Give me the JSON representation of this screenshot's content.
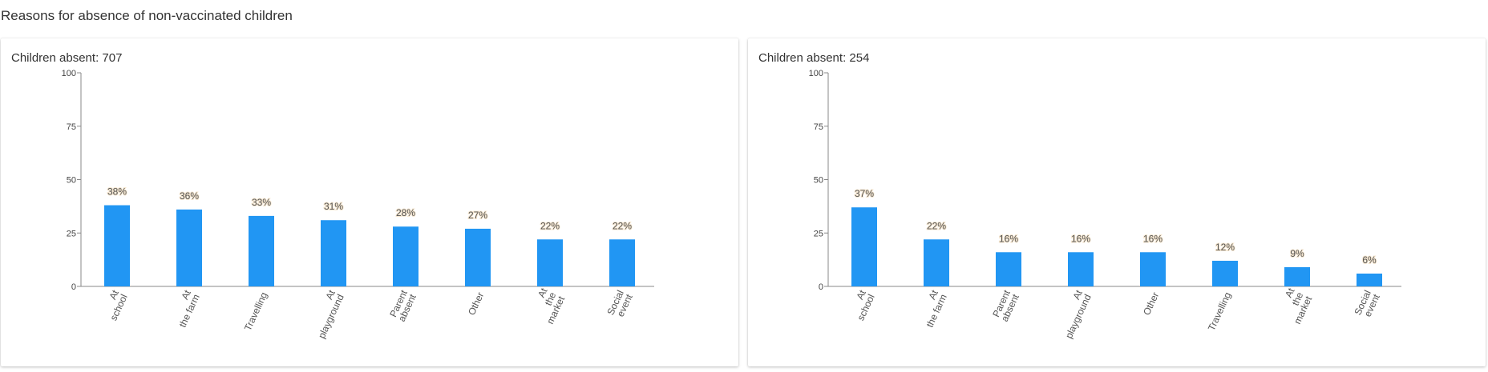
{
  "page": {
    "title": "Reasons for absence of non-vaccinated children"
  },
  "colors": {
    "bar": "#2196f3",
    "axis": "#888888"
  },
  "chart_data": [
    {
      "type": "bar",
      "title_prefix": "Children absent: ",
      "title_value": "707",
      "ylim": [
        0,
        100
      ],
      "yticks": [
        0,
        25,
        50,
        75,
        100
      ],
      "categories": [
        [
          "At",
          "school"
        ],
        [
          "At",
          "the farm"
        ],
        [
          "Travelling"
        ],
        [
          "At",
          "playground"
        ],
        [
          "Parent",
          "absent"
        ],
        [
          "Other"
        ],
        [
          "At",
          "the",
          "market"
        ],
        [
          "Social",
          "event"
        ]
      ],
      "values": [
        38,
        36,
        33,
        31,
        28,
        27,
        22,
        22
      ],
      "data_labels": [
        "38%",
        "36%",
        "33%",
        "31%",
        "28%",
        "27%",
        "22%",
        "22%"
      ]
    },
    {
      "type": "bar",
      "title_prefix": "Children absent: ",
      "title_value": "254",
      "ylim": [
        0,
        100
      ],
      "yticks": [
        0,
        25,
        50,
        75,
        100
      ],
      "categories": [
        [
          "At",
          "school"
        ],
        [
          "At",
          "the farm"
        ],
        [
          "Parent",
          "absent"
        ],
        [
          "At",
          "playground"
        ],
        [
          "Other"
        ],
        [
          "Travelling"
        ],
        [
          "At",
          "the",
          "market"
        ],
        [
          "Social",
          "event"
        ]
      ],
      "values": [
        37,
        22,
        16,
        16,
        16,
        12,
        9,
        6
      ],
      "data_labels": [
        "37%",
        "22%",
        "16%",
        "16%",
        "16%",
        "12%",
        "9%",
        "6%"
      ]
    }
  ]
}
